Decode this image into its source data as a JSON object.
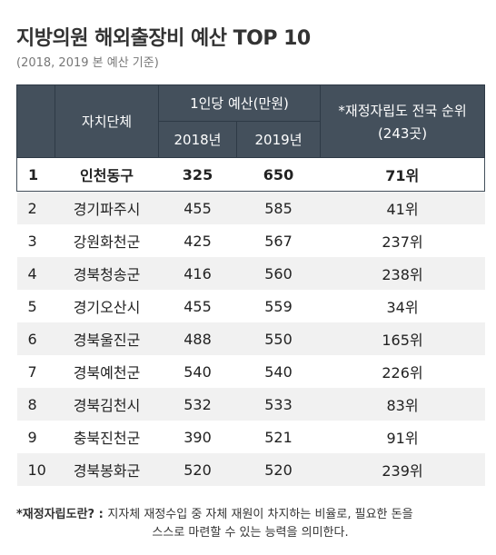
{
  "title": "지방의원 해외출장비 예산 TOP 10",
  "subtitle": "(2018, 2019 본 예산 기준)",
  "chart_data": {
    "type": "table",
    "header": {
      "rank_col": "",
      "region_col": "자치단체",
      "budget_group": "1인당 예산(만원)",
      "year_2018": "2018년",
      "year_2019": "2019년",
      "fiscal_rank_col_line1": "*재정자립도 전국 순위",
      "fiscal_rank_col_line2": "(243곳)"
    },
    "rows": [
      {
        "rank": "1",
        "region": "인천동구",
        "budget_2018": "325",
        "budget_2019": "650",
        "fiscal_rank": "71위"
      },
      {
        "rank": "2",
        "region": "경기파주시",
        "budget_2018": "455",
        "budget_2019": "585",
        "fiscal_rank": "41위"
      },
      {
        "rank": "3",
        "region": "강원화천군",
        "budget_2018": "425",
        "budget_2019": "567",
        "fiscal_rank": "237위"
      },
      {
        "rank": "4",
        "region": "경북청송군",
        "budget_2018": "416",
        "budget_2019": "560",
        "fiscal_rank": "238위"
      },
      {
        "rank": "5",
        "region": "경기오산시",
        "budget_2018": "455",
        "budget_2019": "559",
        "fiscal_rank": "34위"
      },
      {
        "rank": "6",
        "region": "경북울진군",
        "budget_2018": "488",
        "budget_2019": "550",
        "fiscal_rank": "165위"
      },
      {
        "rank": "7",
        "region": "경북예천군",
        "budget_2018": "540",
        "budget_2019": "540",
        "fiscal_rank": "226위"
      },
      {
        "rank": "8",
        "region": "경북김천시",
        "budget_2018": "532",
        "budget_2019": "533",
        "fiscal_rank": "83위"
      },
      {
        "rank": "9",
        "region": "충북진천군",
        "budget_2018": "390",
        "budget_2019": "521",
        "fiscal_rank": "91위"
      },
      {
        "rank": "10",
        "region": "경북봉화군",
        "budget_2018": "520",
        "budget_2019": "520",
        "fiscal_rank": "239위"
      }
    ],
    "highlight_row": 0
  },
  "note": {
    "lead": "*재정자립도란? : ",
    "line1": "지자체 재정수입 중 자체 재원이 차지하는 비율로, 필요한 돈을",
    "line2": "스스로 마련할 수 있는 능력을 의미한다."
  },
  "colors": {
    "header_bg": "#44505c",
    "stripe": "#f1f1f1"
  }
}
